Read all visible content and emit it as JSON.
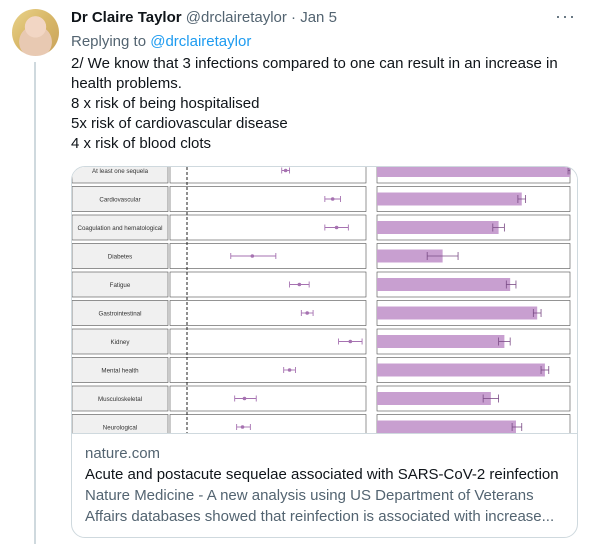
{
  "tweet": {
    "author_name": "Dr Claire Taylor",
    "author_handle": "@drclairetaylor",
    "date": "Jan 5",
    "more_icon": "more-horizontal-icon",
    "replying_prefix": "Replying to",
    "replying_handle": "@drclairetaylor",
    "lines": [
      "2/ We know that 3 infections compared to one can result in an increase in health problems.",
      "8 x risk of being hospitalised",
      "5x risk of cardiovascular disease",
      "4 x risk of blood clots"
    ]
  },
  "card": {
    "domain": "nature.com",
    "title": "Acute and postacute sequelae associated with SARS-CoV-2 reinfection",
    "description_line1": "Nature Medicine - A new analysis using US Department of Veterans",
    "description_line2": "Affairs databases showed that reinfection is associated with increase..."
  },
  "chart_data": {
    "type": "forest-and-bar",
    "colors": {
      "marker": "#a672b1",
      "bar": "#c89fd0",
      "border": "#4d4d4d",
      "label_bg": "#f0f0f0"
    },
    "categories": [
      "At least one sequela",
      "Cardiovascular",
      "Coagulation and hematological",
      "Diabetes",
      "Fatigue",
      "Gastrointestinal",
      "Kidney",
      "Mental health",
      "Musculoskeletal",
      "Neurological"
    ],
    "forest": {
      "estimate": [
        0.59,
        0.83,
        0.85,
        0.42,
        0.66,
        0.7,
        0.92,
        0.61,
        0.38,
        0.37
      ],
      "ci_low": [
        0.57,
        0.79,
        0.79,
        0.31,
        0.61,
        0.67,
        0.86,
        0.58,
        0.33,
        0.34
      ],
      "ci_high": [
        0.61,
        0.87,
        0.91,
        0.54,
        0.71,
        0.73,
        0.98,
        0.64,
        0.44,
        0.41
      ]
    },
    "bars": {
      "value": [
        1.0,
        0.75,
        0.63,
        0.34,
        0.69,
        0.83,
        0.66,
        0.87,
        0.59,
        0.72
      ],
      "err_low": [
        0.99,
        0.73,
        0.6,
        0.26,
        0.67,
        0.81,
        0.63,
        0.85,
        0.55,
        0.7
      ],
      "err_high": [
        1.0,
        0.77,
        0.66,
        0.42,
        0.72,
        0.85,
        0.69,
        0.89,
        0.63,
        0.75
      ]
    }
  }
}
